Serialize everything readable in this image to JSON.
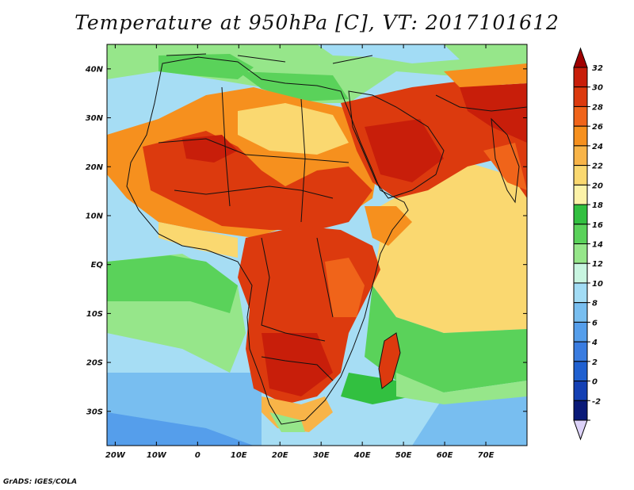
{
  "title": "Temperature at 950hPa [C], VT: 2017101612",
  "credit": "GrADS: IGES/COLA",
  "map": {
    "lon_range": [
      -22,
      80
    ],
    "lat_range": [
      -37,
      45
    ],
    "lat_ticks": [
      {
        "value": 40,
        "label": "40N"
      },
      {
        "value": 30,
        "label": "30N"
      },
      {
        "value": 20,
        "label": "20N"
      },
      {
        "value": 10,
        "label": "10N"
      },
      {
        "value": 0,
        "label": "EQ"
      },
      {
        "value": -10,
        "label": "10S"
      },
      {
        "value": -20,
        "label": "20S"
      },
      {
        "value": -30,
        "label": "30S"
      }
    ],
    "lon_ticks": [
      {
        "value": -20,
        "label": "20W"
      },
      {
        "value": -10,
        "label": "10W"
      },
      {
        "value": 0,
        "label": "0"
      },
      {
        "value": 10,
        "label": "10E"
      },
      {
        "value": 20,
        "label": "20E"
      },
      {
        "value": 30,
        "label": "30E"
      },
      {
        "value": 40,
        "label": "40E"
      },
      {
        "value": 50,
        "label": "50E"
      },
      {
        "value": 60,
        "label": "60E"
      },
      {
        "value": 70,
        "label": "70E"
      }
    ]
  },
  "colorbar": {
    "levels": [
      {
        "label": "32",
        "color": "#c81e0a"
      },
      {
        "label": "30",
        "color": "#dc3a0e"
      },
      {
        "label": "28",
        "color": "#f0641a"
      },
      {
        "label": "26",
        "color": "#f6901e"
      },
      {
        "label": "24",
        "color": "#f8b448"
      },
      {
        "label": "22",
        "color": "#fad870"
      },
      {
        "label": "20",
        "color": "#fcf2a8"
      },
      {
        "label": "18",
        "color": "#32c040"
      },
      {
        "label": "16",
        "color": "#5ad25a"
      },
      {
        "label": "14",
        "color": "#96e68a"
      },
      {
        "label": "12",
        "color": "#c8f5e0"
      },
      {
        "label": "10",
        "color": "#a2dcf5"
      },
      {
        "label": "8",
        "color": "#78bef0"
      },
      {
        "label": "6",
        "color": "#559eeb"
      },
      {
        "label": "4",
        "color": "#3a7ce0"
      },
      {
        "label": "2",
        "color": "#2060d0"
      },
      {
        "label": "0",
        "color": "#1440b4"
      },
      {
        "label": "-2",
        "color": "#0a1a78"
      }
    ],
    "top_arrow_color": "#a00000",
    "bottom_arrow_color": "#dcd2f8"
  }
}
